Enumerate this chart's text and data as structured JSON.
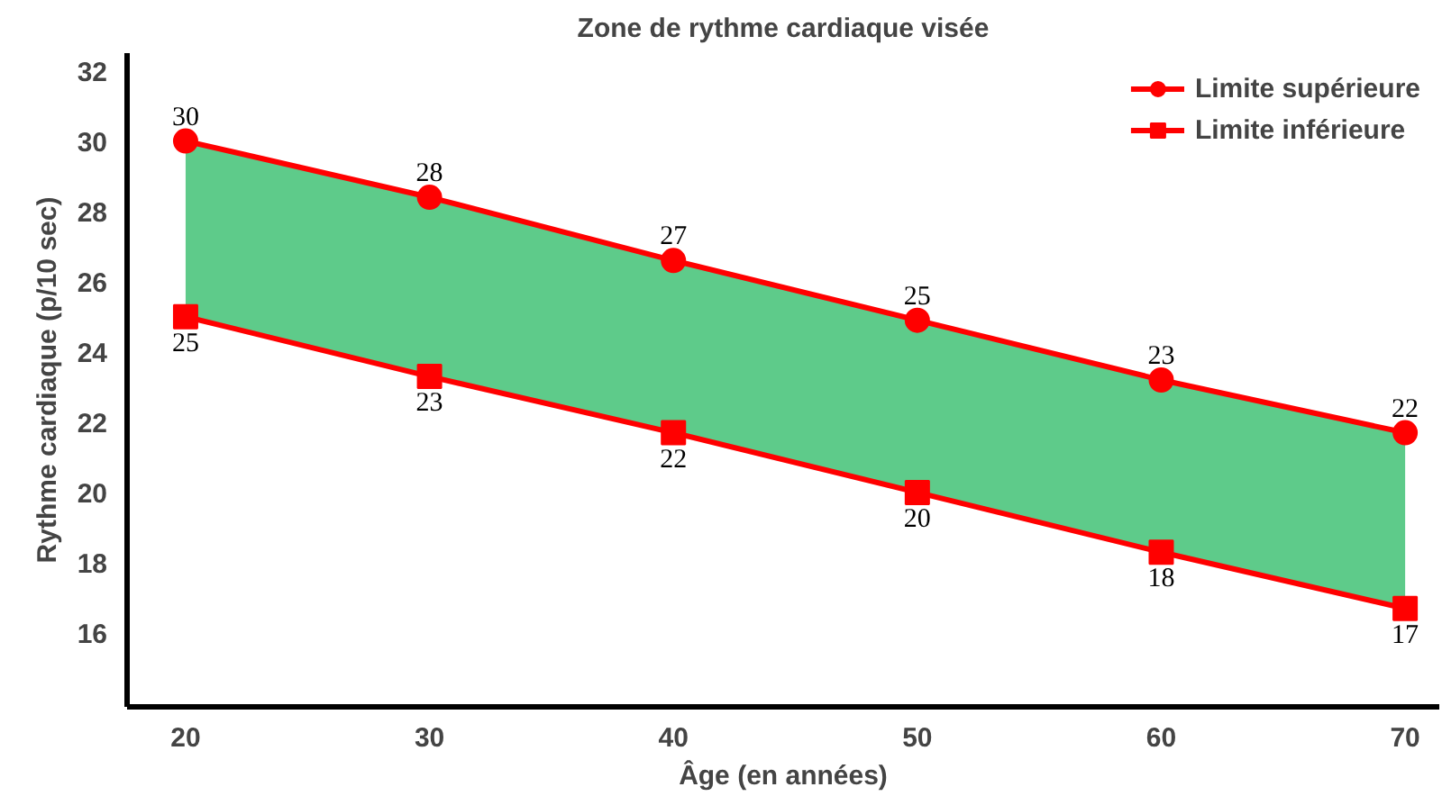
{
  "chart_data": {
    "type": "line",
    "title": "Zone de rythme cardiaque visée",
    "xlabel": "Âge (en années)",
    "ylabel": "Rythme cardiaque (p/10 sec)",
    "x": [
      20,
      30,
      40,
      50,
      60,
      70
    ],
    "series": [
      {
        "type": "area",
        "color": "#5ecb8a",
        "values": [
          30.0,
          28.4,
          26.6,
          24.9,
          23.2,
          21.7
        ]
      },
      {
        "name": "Limite supérieure",
        "color": "#ff0000",
        "marker": "circle",
        "values": [
          30.0,
          28.4,
          26.6,
          24.9,
          23.2,
          21.7
        ],
        "value_labels": [
          "30",
          "28",
          "27",
          "25",
          "23",
          "22"
        ]
      },
      {
        "name": "Limite inférieure",
        "color": "#ff0000",
        "marker": "square",
        "values": [
          25.0,
          23.3,
          21.7,
          20.0,
          18.3,
          16.7
        ],
        "value_labels": [
          "25",
          "23",
          "22",
          "20",
          "18",
          "17"
        ]
      }
    ],
    "xlim": [
      17.6,
      71.4
    ],
    "ylim": [
      13.9,
      32.5
    ],
    "xticks": [
      20,
      30,
      40,
      50,
      60,
      70
    ],
    "yticks": [
      16,
      18,
      20,
      22,
      24,
      26,
      28,
      30,
      32
    ],
    "grid": false,
    "legend": "top right",
    "line_style": "solid"
  }
}
